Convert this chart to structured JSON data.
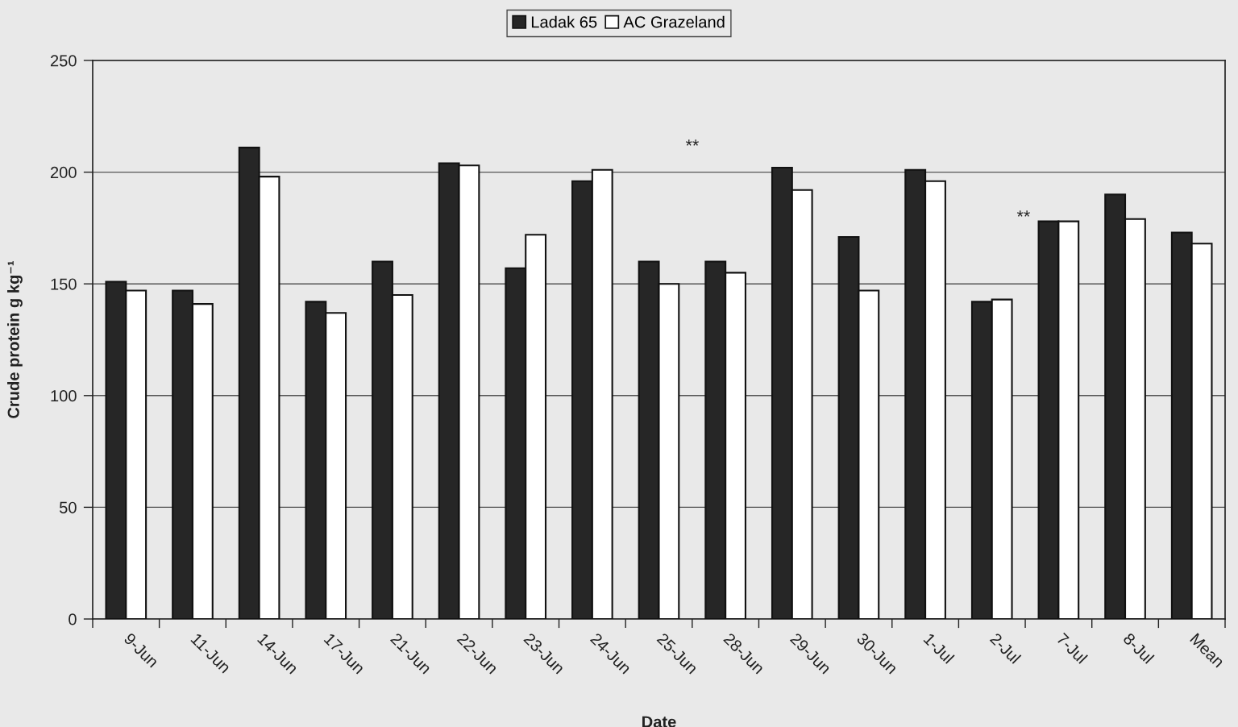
{
  "chart_data": {
    "type": "bar",
    "categories": [
      "9-Jun",
      "11-Jun",
      "14-Jun",
      "17-Jun",
      "21-Jun",
      "22-Jun",
      "23-Jun",
      "24-Jun",
      "25-Jun",
      "28-Jun",
      "29-Jun",
      "30-Jun",
      "1-Jul",
      "2-Jul",
      "7-Jul",
      "8-Jul",
      "Mean"
    ],
    "series": [
      {
        "name": "Ladak 65",
        "color": "#262626",
        "values": [
          151,
          147,
          211,
          142,
          160,
          204,
          157,
          196,
          160,
          160,
          202,
          171,
          201,
          142,
          178,
          190,
          173
        ]
      },
      {
        "name": "AC Grazeland",
        "color": "#ffffff",
        "values": [
          147,
          141,
          198,
          137,
          145,
          203,
          172,
          201,
          150,
          155,
          192,
          147,
          196,
          143,
          178,
          179,
          168
        ]
      }
    ],
    "xlabel": "Date",
    "ylabel": "Crude protein g kg⁻¹",
    "ylim": [
      0,
      250
    ],
    "yticks": [
      0,
      50,
      100,
      150,
      200,
      250
    ],
    "grid": "y",
    "legend": "top",
    "annotations": [
      "**",
      "**"
    ]
  }
}
